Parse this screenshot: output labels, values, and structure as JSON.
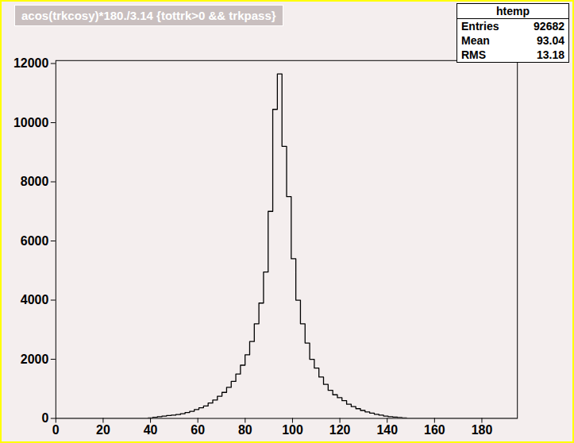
{
  "chart_data": {
    "type": "histogram",
    "title": "acos(trkcosy)*180./3.14 {tottrk>0 && trkpass}",
    "color": "#000000",
    "bins": [
      0,
      1.95,
      3.9,
      5.85,
      7.8,
      9.75,
      11.7,
      13.65,
      15.6,
      17.55,
      19.5,
      21.45,
      23.4,
      25.35,
      27.3,
      29.25,
      31.2,
      33.15,
      35.1,
      37.05,
      39,
      40.95,
      42.9,
      44.85,
      46.8,
      48.75,
      50.7,
      52.65,
      54.6,
      56.55,
      58.5,
      60.45,
      62.4,
      64.35,
      66.3,
      68.25,
      70.2,
      72.15,
      74.1,
      76.05,
      78,
      79.95,
      81.9,
      83.85,
      85.8,
      87.75,
      89.7,
      91.65,
      93.6,
      95.55,
      97.5,
      99.45,
      101.4,
      103.35,
      105.3,
      107.25,
      109.2,
      111.15,
      113.1,
      115.05,
      117,
      118.95,
      120.9,
      122.85,
      124.8,
      126.75,
      128.7,
      130.65,
      132.6,
      134.55,
      136.5,
      138.45,
      140.4,
      142.35,
      144.3,
      146.25,
      148.2,
      150.15,
      152.1,
      154.05,
      156,
      157.95,
      159.9,
      161.85,
      163.8,
      165.75,
      167.7,
      169.65,
      171.6,
      173.55,
      175.5,
      177.45,
      179.4,
      181.35,
      183.3,
      185.25,
      187.2,
      189.15,
      191.1,
      193.05,
      195
    ],
    "values": [
      0,
      0,
      0,
      0,
      0,
      0,
      0,
      0,
      0,
      0,
      0,
      0,
      0,
      0,
      0,
      0,
      0,
      0,
      0,
      0,
      20,
      40,
      60,
      80,
      100,
      110,
      130,
      160,
      200,
      240,
      300,
      360,
      420,
      520,
      620,
      750,
      880,
      1050,
      1250,
      1500,
      1800,
      2150,
      2600,
      3200,
      3900,
      4950,
      7000,
      10450,
      11650,
      9200,
      7500,
      5400,
      4000,
      3200,
      2550,
      2000,
      1700,
      1400,
      1150,
      950,
      800,
      700,
      600,
      480,
      400,
      330,
      270,
      220,
      180,
      140,
      110,
      80,
      60,
      45,
      30,
      20,
      0,
      0,
      0,
      0,
      0,
      0,
      0,
      0,
      0,
      0,
      0,
      0,
      0,
      0,
      0,
      0,
      0,
      0,
      0,
      0,
      0,
      0,
      0,
      0
    ],
    "xlim": [
      0,
      195
    ],
    "xticks": [
      0,
      20,
      40,
      60,
      80,
      100,
      120,
      140,
      160,
      180
    ],
    "ylim": [
      0,
      12100
    ],
    "yticks": [
      0,
      2000,
      4000,
      6000,
      8000,
      10000,
      12000
    ],
    "grid": false,
    "stats_title": "htemp",
    "stats": [
      {
        "label": "Entries",
        "value": 92682
      },
      {
        "label": "Mean",
        "value": 93.04
      },
      {
        "label": "RMS",
        "value": 13.18
      }
    ]
  }
}
